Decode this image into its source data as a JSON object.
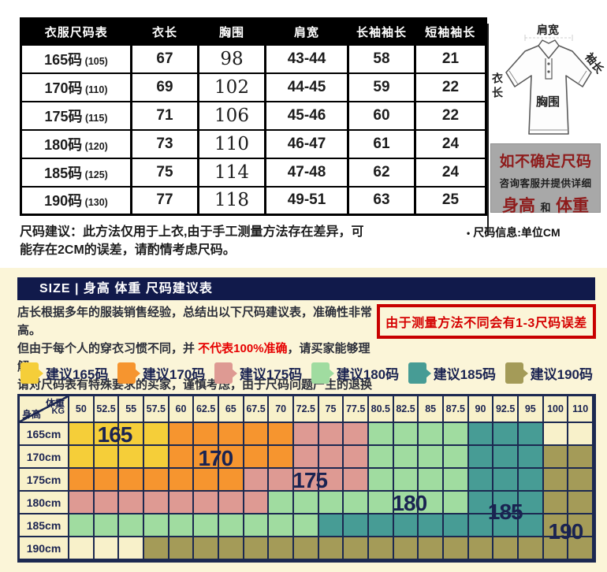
{
  "size_table": {
    "headers": [
      "衣服尺码表",
      "衣长",
      "胸围",
      "肩宽",
      "长袖袖长",
      "短袖袖长"
    ],
    "rows": [
      {
        "size": "165码",
        "tag": "(105)",
        "values": [
          "67",
          "98",
          "43-44",
          "58",
          "21"
        ]
      },
      {
        "size": "170码",
        "tag": "(110)",
        "values": [
          "69",
          "102",
          "44-45",
          "59",
          "22"
        ]
      },
      {
        "size": "175码",
        "tag": "(115)",
        "values": [
          "71",
          "106",
          "45-46",
          "60",
          "22"
        ]
      },
      {
        "size": "180码",
        "tag": "(120)",
        "values": [
          "73",
          "110",
          "46-47",
          "61",
          "24"
        ]
      },
      {
        "size": "185码",
        "tag": "(125)",
        "values": [
          "75",
          "114",
          "47-48",
          "62",
          "24"
        ]
      },
      {
        "size": "190码",
        "tag": "(130)",
        "values": [
          "77",
          "118",
          "49-51",
          "63",
          "25"
        ]
      }
    ]
  },
  "shirt_diagram": {
    "shoulder": "肩宽",
    "sleeve": "袖长",
    "length": "衣长",
    "chest": "胸围"
  },
  "notice_box": {
    "line1": "如不确定尺码",
    "line2": "咨询客服并提供详细",
    "height": "身高",
    "and": "和",
    "weight": "体重",
    "bg": "#a8a8a8",
    "accent": "#8e1b1b"
  },
  "unit_note": {
    "bullet": "•",
    "text": "尺码信息:单位CM"
  },
  "size_advice": {
    "label": "尺码建议：",
    "text": "此方法仅用于上衣,由于手工测量方法存在差异，可能存在2CM的误差，请酌情考虑尺码。"
  },
  "recommend_section": {
    "header": "SIZE | 身高 体重 尺码建议表",
    "header_bg": "#111a4b",
    "section_bg": "#fbf5d8",
    "intro_line1": "店长根据多年的服装销售经验，总结出以下尺码建议表，准确性非常高。",
    "intro_line2_pre": "但由于每个人的穿衣习惯不同，并 ",
    "intro_line2_red": "不代表100%准确",
    "intro_line2_post": "，请买家能够理解。",
    "intro_line3": "请对尺码表有特殊要求的买家，谨慎考虑，由于尺码问题产生的退换货由买家自己承担运费。",
    "warning": "由于测量方法不同会有1-3尺码误差",
    "warning_color": "#d50000",
    "legend": [
      {
        "label": "建议165码",
        "color": "#f5ce39"
      },
      {
        "label": "建议170码",
        "color": "#f6952f"
      },
      {
        "label": "建议175码",
        "color": "#de9a93"
      },
      {
        "label": "建议180码",
        "color": "#a0dca0"
      },
      {
        "label": "建议185码",
        "color": "#479c95"
      },
      {
        "label": "建议190码",
        "color": "#a49b58"
      }
    ]
  },
  "chart_data": {
    "type": "heatmap",
    "title": "SIZE | 身高 体重 尺码建议表",
    "xlabel": "体重 KG",
    "ylabel": "身高",
    "corner": {
      "top": "体重",
      "unit": "KG",
      "bottom": "身高"
    },
    "weights": [
      "50",
      "52.5",
      "55",
      "57.5",
      "60",
      "62.5",
      "65",
      "67.5",
      "70",
      "72.5",
      "75",
      "77.5",
      "80.5",
      "82.5",
      "85",
      "87.5",
      "90",
      "92.5",
      "95",
      "100",
      "110"
    ],
    "heights": [
      "165cm",
      "170cm",
      "175cm",
      "180cm",
      "185cm",
      "190cm"
    ],
    "palette": {
      "165": "#f5ce39",
      "170": "#f6952f",
      "175": "#de9a93",
      "180": "#a0dca0",
      "185": "#479c95",
      "190": "#a49b58"
    },
    "empty_color": "#f8f1ca",
    "grid_color": "#1c2951",
    "cells": [
      [
        "165",
        "165",
        "165",
        "165",
        "170",
        "170",
        "170",
        "170",
        "170",
        "175",
        "175",
        "175",
        "180",
        "180",
        "180",
        "180",
        "185",
        "185",
        "185",
        "",
        ""
      ],
      [
        "165",
        "165",
        "165",
        "165",
        "170",
        "170",
        "170",
        "170",
        "170",
        "175",
        "175",
        "175",
        "180",
        "180",
        "180",
        "180",
        "185",
        "185",
        "185",
        "190",
        "190"
      ],
      [
        "170",
        "170",
        "170",
        "170",
        "170",
        "170",
        "170",
        "175",
        "175",
        "175",
        "175",
        "175",
        "180",
        "180",
        "180",
        "180",
        "185",
        "185",
        "185",
        "190",
        "190"
      ],
      [
        "175",
        "175",
        "175",
        "175",
        "175",
        "175",
        "175",
        "175",
        "180",
        "180",
        "180",
        "180",
        "180",
        "180",
        "180",
        "180",
        "185",
        "185",
        "185",
        "190",
        "190"
      ],
      [
        "180",
        "180",
        "180",
        "180",
        "180",
        "180",
        "180",
        "180",
        "180",
        "180",
        "185",
        "185",
        "185",
        "185",
        "185",
        "185",
        "185",
        "185",
        "185",
        "190",
        "190"
      ],
      [
        "",
        "",
        "",
        "190",
        "190",
        "190",
        "190",
        "190",
        "190",
        "190",
        "190",
        "190",
        "190",
        "190",
        "190",
        "190",
        "190",
        "190",
        "190",
        "190",
        "190"
      ]
    ],
    "region_labels": [
      {
        "text": "165",
        "col": 1.8,
        "row": 0.5
      },
      {
        "text": "170",
        "col": 5.8,
        "row": 1.55
      },
      {
        "text": "175",
        "col": 9.55,
        "row": 2.5
      },
      {
        "text": "180",
        "col": 13.5,
        "row": 3.5
      },
      {
        "text": "185",
        "col": 17.3,
        "row": 3.9
      },
      {
        "text": "190",
        "col": 19.7,
        "row": 4.75
      }
    ]
  }
}
